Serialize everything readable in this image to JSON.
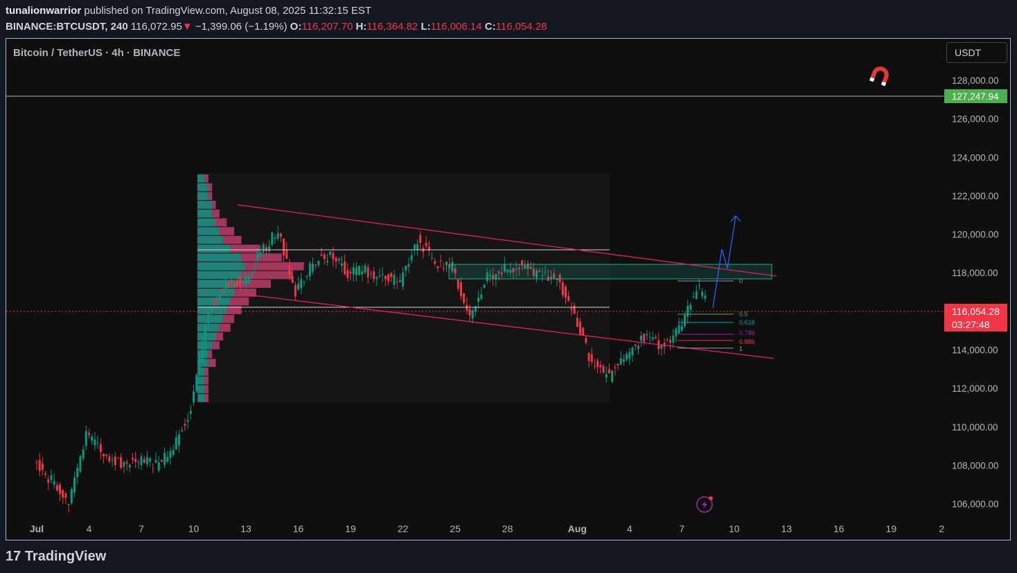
{
  "header": {
    "author": "tunalionwarrior",
    "published": "published on TradingView.com, August 08, 2025 11:32:15 EST",
    "symbol": "BINANCE:BTCUSDT, 240",
    "last": "116,072.95",
    "change": "−1,399.06 (−1.19%)",
    "o_label": "O:",
    "o": "116,207.70",
    "h_label": "H:",
    "h": "116,364.82",
    "l_label": "L:",
    "l": "116,006.14",
    "c_label": "C:",
    "c": "116,054.28"
  },
  "chart_title": "Bitcoin / TetherUS · 4h · BINANCE",
  "currency_button": "USDT",
  "brand": "TradingView",
  "icons": [
    "magnet-icon",
    "lightning-alert-icon",
    "tradingview-logo-icon"
  ],
  "colors": {
    "up": "#089981",
    "down": "#f23645",
    "trendline": "#e91e63",
    "zone": "#22ab94",
    "projection": "#2962ff",
    "marker_label": "#4caf50",
    "price_label": "#f23645"
  },
  "chart_data": {
    "type": "candlestick",
    "timeframe": "4h",
    "ylim": [
      105000,
      129000
    ],
    "y_ticks": [
      "128,000.00",
      "126,000.00",
      "124,000.00",
      "122,000.00",
      "120,000.00",
      "118,000.00",
      "116,000.00",
      "114,000.00",
      "112,000.00",
      "110,000.00",
      "108,000.00",
      "106,000.00"
    ],
    "x_ticks": [
      "Jul",
      "4",
      "7",
      "10",
      "13",
      "16",
      "19",
      "22",
      "25",
      "28",
      "Aug",
      "4",
      "7",
      "10",
      "13",
      "16",
      "19",
      "2"
    ],
    "daily_close": {
      "dates": [
        "Jul 1",
        "Jul 2",
        "Jul 3",
        "Jul 4",
        "Jul 5",
        "Jul 6",
        "Jul 7",
        "Jul 8",
        "Jul 9",
        "Jul 10",
        "Jul 11",
        "Jul 12",
        "Jul 13",
        "Jul 14",
        "Jul 15",
        "Jul 16",
        "Jul 17",
        "Jul 18",
        "Jul 19",
        "Jul 20",
        "Jul 21",
        "Jul 22",
        "Jul 23",
        "Jul 24",
        "Jul 25",
        "Jul 26",
        "Jul 27",
        "Jul 28",
        "Jul 29",
        "Jul 30",
        "Jul 31",
        "Aug 1",
        "Aug 2",
        "Aug 3",
        "Aug 4",
        "Aug 5",
        "Aug 6",
        "Aug 7",
        "Aug 8"
      ],
      "values": [
        107200,
        106000,
        109500,
        108700,
        108100,
        108300,
        108000,
        108800,
        111000,
        116000,
        117500,
        117400,
        119000,
        120200,
        117000,
        118500,
        119000,
        118000,
        118100,
        117800,
        117500,
        119700,
        118500,
        118300,
        115500,
        117800,
        118200,
        118400,
        117800,
        117700,
        115800,
        113300,
        112600,
        113800,
        114700,
        114100,
        115000,
        117300,
        116054.28
      ]
    },
    "marker_price": "127,247.94",
    "current_price": "116,054.28",
    "countdown": "03:27:48",
    "fib_levels": [
      "0",
      "0.5",
      "0.618",
      "0.786",
      "0.886",
      "1"
    ],
    "volume_profile": {
      "up": [
        2,
        3,
        3,
        4,
        4,
        5,
        6,
        7,
        9,
        12,
        13,
        12,
        11,
        10,
        9,
        8,
        7,
        6,
        5,
        4,
        3,
        3,
        2,
        2,
        2,
        2
      ],
      "down": [
        1,
        1,
        1,
        1,
        2,
        3,
        4,
        5,
        8,
        11,
        16,
        14,
        9,
        6,
        5,
        4,
        3,
        3,
        2,
        2,
        1,
        2,
        1,
        1,
        1,
        1
      ]
    }
  }
}
